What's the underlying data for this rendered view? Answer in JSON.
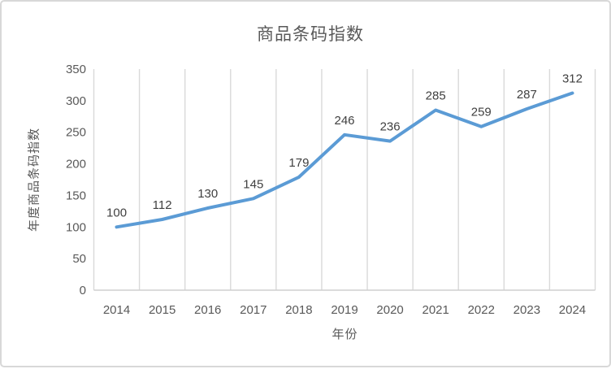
{
  "chart_data": {
    "type": "line",
    "title": "商品条码指数",
    "xlabel": "年份",
    "ylabel": "年度商品条码指数",
    "categories": [
      "2014",
      "2015",
      "2016",
      "2017",
      "2018",
      "2019",
      "2020",
      "2021",
      "2022",
      "2023",
      "2024"
    ],
    "values": [
      100,
      112,
      130,
      145,
      179,
      246,
      236,
      285,
      259,
      287,
      312
    ],
    "data_labels": [
      "100",
      "112",
      "130",
      "145",
      "179",
      "246",
      "236",
      "285",
      "259",
      "287",
      "312"
    ],
    "ylim": [
      0,
      350
    ],
    "yticks": [
      0,
      50,
      100,
      150,
      200,
      250,
      300,
      350
    ],
    "grid": {
      "vertical": true,
      "horizontal": false
    },
    "legend_position": "none",
    "colors": {
      "line": "#5b9bd5",
      "gridline": "#d9d9d9",
      "axis_line": "#cfcfcf",
      "tick_label": "#595959",
      "title": "#595959",
      "axis_title": "#595959",
      "data_label": "#404040",
      "frame_border": "#d8d8d8",
      "background": "#ffffff"
    }
  }
}
